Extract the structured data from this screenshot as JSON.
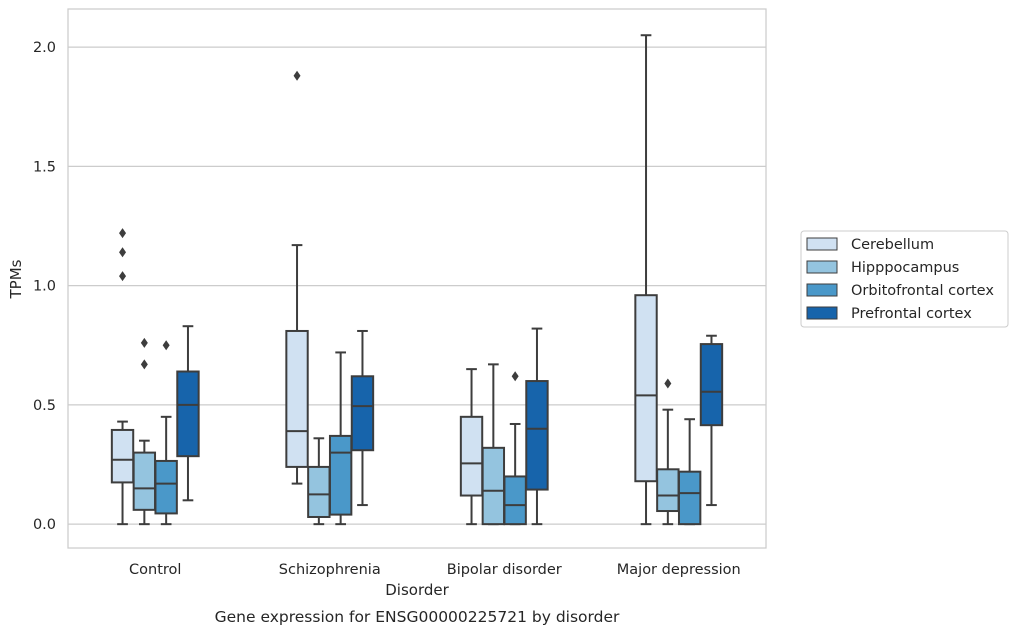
{
  "chart_data": {
    "type": "box",
    "title": "",
    "caption": "Gene expression for ENSG00000225721 by disorder",
    "xlabel": "Disorder",
    "ylabel": "TPMs",
    "ylim": [
      -0.1,
      2.16
    ],
    "yticks": [
      "0.0",
      "0.5",
      "1.0",
      "1.5",
      "2.0"
    ],
    "ytick_values": [
      0,
      0.5,
      1.0,
      1.5,
      2.0
    ],
    "grid": "horizontal",
    "legend_position": "right",
    "categories": [
      "Control",
      "Schizophrenia",
      "Bipolar disorder",
      "Major depression"
    ],
    "series": [
      {
        "name": "Cerebellum",
        "color": "#d0e1f2",
        "boxes": [
          {
            "whisker_low": 0.0,
            "q1": 0.175,
            "median": 0.27,
            "q3": 0.395,
            "whisker_high": 0.43,
            "outliers": [
              1.04,
              1.14,
              1.22
            ]
          },
          {
            "whisker_low": 0.17,
            "q1": 0.24,
            "median": 0.39,
            "q3": 0.81,
            "whisker_high": 1.17,
            "outliers": [
              1.88
            ]
          },
          {
            "whisker_low": 0.0,
            "q1": 0.12,
            "median": 0.255,
            "q3": 0.45,
            "whisker_high": 0.65,
            "outliers": []
          },
          {
            "whisker_low": 0.0,
            "q1": 0.18,
            "median": 0.54,
            "q3": 0.96,
            "whisker_high": 2.05,
            "outliers": []
          }
        ]
      },
      {
        "name": "Hipppocampus",
        "color": "#94c4df",
        "boxes": [
          {
            "whisker_low": 0.0,
            "q1": 0.06,
            "median": 0.15,
            "q3": 0.3,
            "whisker_high": 0.35,
            "outliers": [
              0.67,
              0.76
            ]
          },
          {
            "whisker_low": 0.0,
            "q1": 0.03,
            "median": 0.125,
            "q3": 0.24,
            "whisker_high": 0.36,
            "outliers": []
          },
          {
            "whisker_low": 0.0,
            "q1": 0.0,
            "median": 0.14,
            "q3": 0.32,
            "whisker_high": 0.67,
            "outliers": []
          },
          {
            "whisker_low": 0.0,
            "q1": 0.055,
            "median": 0.12,
            "q3": 0.23,
            "whisker_high": 0.48,
            "outliers": [
              0.59
            ]
          }
        ]
      },
      {
        "name": "Orbitofrontal cortex",
        "color": "#4a98c9",
        "boxes": [
          {
            "whisker_low": 0.0,
            "q1": 0.045,
            "median": 0.17,
            "q3": 0.265,
            "whisker_high": 0.45,
            "outliers": [
              0.75
            ]
          },
          {
            "whisker_low": 0.0,
            "q1": 0.04,
            "median": 0.3,
            "q3": 0.37,
            "whisker_high": 0.72,
            "outliers": []
          },
          {
            "whisker_low": 0.0,
            "q1": 0.0,
            "median": 0.08,
            "q3": 0.2,
            "whisker_high": 0.42,
            "outliers": [
              0.62
            ]
          },
          {
            "whisker_low": 0.0,
            "q1": 0.0,
            "median": 0.13,
            "q3": 0.22,
            "whisker_high": 0.44,
            "outliers": []
          }
        ]
      },
      {
        "name": "Prefrontal cortex",
        "color": "#1764ab",
        "boxes": [
          {
            "whisker_low": 0.1,
            "q1": 0.285,
            "median": 0.5,
            "q3": 0.64,
            "whisker_high": 0.83,
            "outliers": []
          },
          {
            "whisker_low": 0.08,
            "q1": 0.31,
            "median": 0.495,
            "q3": 0.62,
            "whisker_high": 0.81,
            "outliers": []
          },
          {
            "whisker_low": 0.0,
            "q1": 0.145,
            "median": 0.4,
            "q3": 0.6,
            "whisker_high": 0.82,
            "outliers": []
          },
          {
            "whisker_low": 0.08,
            "q1": 0.415,
            "median": 0.555,
            "q3": 0.755,
            "whisker_high": 0.79,
            "outliers": []
          }
        ]
      }
    ]
  }
}
